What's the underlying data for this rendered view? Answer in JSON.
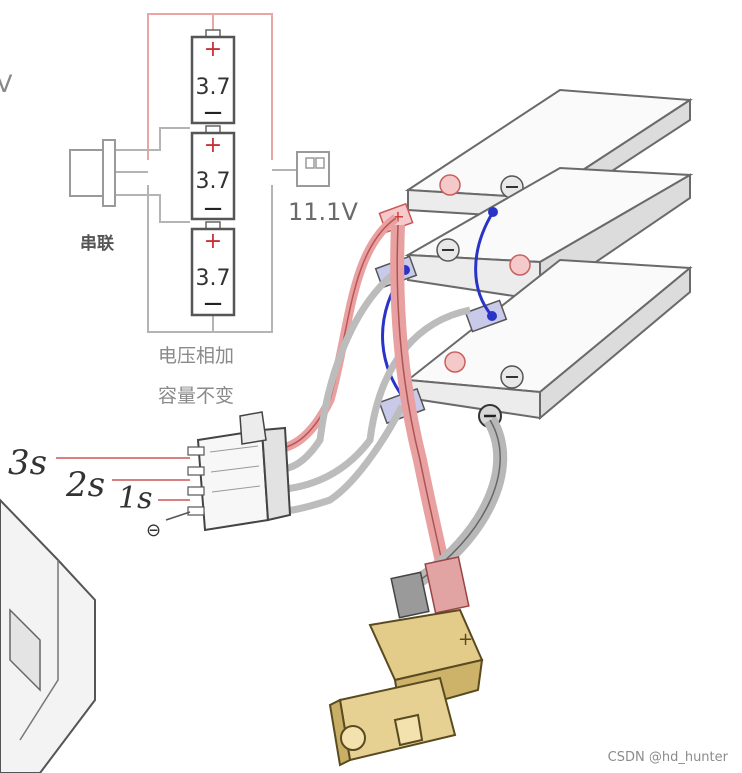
{
  "schematic": {
    "cells": [
      {
        "plus": "+",
        "value": "3.7",
        "minus": "−"
      },
      {
        "plus": "+",
        "value": "3.7",
        "minus": "−"
      },
      {
        "plus": "+",
        "value": "3.7",
        "minus": "−"
      }
    ],
    "series_label": "串联",
    "output_voltage": "11.1V",
    "note_line1": "电压相加",
    "note_line2": "容量不变"
  },
  "balance_plug": {
    "pins": [
      {
        "label": "3s"
      },
      {
        "label": "2s"
      },
      {
        "label": "1s"
      }
    ],
    "ground_label": "⊖"
  },
  "stray_mark": "V",
  "watermark": "CSDN @hd_hunter"
}
